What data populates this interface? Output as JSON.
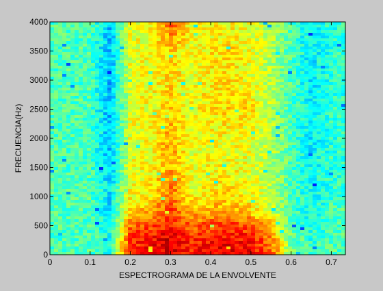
{
  "chart_data": {
    "type": "heatmap",
    "title": "",
    "xlabel": "ESPECTROGRAMA DE LA ENVOLVENTE",
    "ylabel": "FRECUENCIA(Hz)",
    "xlim": [
      0,
      0.735
    ],
    "ylim": [
      0,
      4000
    ],
    "x_ticks": [
      0,
      0.1,
      0.2,
      0.3,
      0.4,
      0.5,
      0.6,
      0.7
    ],
    "x_tick_labels": [
      "0",
      "0.1",
      "0.2",
      "0.3",
      "0.4",
      "0.5",
      "0.6",
      "0.7"
    ],
    "y_ticks": [
      0,
      500,
      1000,
      1500,
      2000,
      2500,
      3000,
      3500,
      4000
    ],
    "y_tick_labels": [
      "0",
      "500",
      "1000",
      "1500",
      "2000",
      "2500",
      "3000",
      "3500",
      "4000"
    ],
    "colormap": "jet",
    "grid": false,
    "time_s": [
      0.0,
      0.05,
      0.1,
      0.15,
      0.2,
      0.25,
      0.3,
      0.35,
      0.4,
      0.45,
      0.5,
      0.55,
      0.6,
      0.65,
      0.7
    ],
    "freq_hz": [
      0,
      250,
      500,
      750,
      1000,
      1500,
      2000,
      2500,
      3000,
      3500,
      4000
    ],
    "intensity": [
      [
        0.45,
        0.45,
        0.45,
        0.4,
        0.85,
        0.88,
        0.92,
        0.85,
        0.88,
        0.9,
        0.88,
        0.8,
        0.5,
        0.45,
        0.45
      ],
      [
        0.45,
        0.45,
        0.45,
        0.4,
        0.82,
        0.86,
        0.92,
        0.84,
        0.86,
        0.88,
        0.85,
        0.76,
        0.48,
        0.42,
        0.45
      ],
      [
        0.45,
        0.45,
        0.45,
        0.4,
        0.76,
        0.8,
        0.86,
        0.78,
        0.8,
        0.82,
        0.78,
        0.68,
        0.45,
        0.4,
        0.45
      ],
      [
        0.45,
        0.45,
        0.45,
        0.35,
        0.66,
        0.7,
        0.8,
        0.7,
        0.7,
        0.72,
        0.66,
        0.58,
        0.45,
        0.4,
        0.45
      ],
      [
        0.45,
        0.45,
        0.45,
        0.35,
        0.62,
        0.64,
        0.78,
        0.62,
        0.66,
        0.66,
        0.62,
        0.56,
        0.45,
        0.38,
        0.42
      ],
      [
        0.45,
        0.45,
        0.45,
        0.32,
        0.6,
        0.62,
        0.7,
        0.6,
        0.62,
        0.62,
        0.6,
        0.55,
        0.45,
        0.38,
        0.42
      ],
      [
        0.45,
        0.45,
        0.45,
        0.3,
        0.6,
        0.62,
        0.72,
        0.6,
        0.62,
        0.62,
        0.6,
        0.55,
        0.45,
        0.36,
        0.42
      ],
      [
        0.45,
        0.45,
        0.45,
        0.3,
        0.6,
        0.62,
        0.66,
        0.62,
        0.64,
        0.66,
        0.66,
        0.55,
        0.45,
        0.38,
        0.42
      ],
      [
        0.45,
        0.45,
        0.45,
        0.3,
        0.6,
        0.62,
        0.66,
        0.6,
        0.64,
        0.66,
        0.6,
        0.55,
        0.45,
        0.36,
        0.42
      ],
      [
        0.45,
        0.45,
        0.45,
        0.3,
        0.6,
        0.62,
        0.66,
        0.62,
        0.64,
        0.66,
        0.6,
        0.55,
        0.45,
        0.36,
        0.42
      ],
      [
        0.45,
        0.45,
        0.45,
        0.32,
        0.6,
        0.62,
        0.8,
        0.62,
        0.62,
        0.62,
        0.6,
        0.55,
        0.45,
        0.38,
        0.42
      ]
    ]
  }
}
